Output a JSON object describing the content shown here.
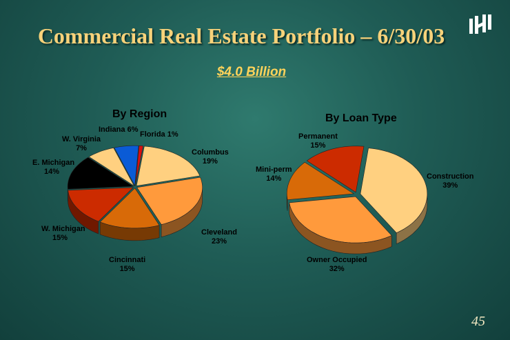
{
  "title": "Commercial Real Estate Portfolio – 6/30/03",
  "subtitle": "$4.0 Billion",
  "page_number": "45",
  "logo": "huntington-logo",
  "colors": {
    "background": "#1f5c55",
    "title": "#f7d27a",
    "subtitle": "#ffd35a"
  },
  "chart_data": [
    {
      "type": "pie",
      "title": "By Region",
      "slices": [
        {
          "name": "Columbus",
          "label": "Columbus",
          "pct_label": "19%",
          "value": 19,
          "color": "#ffd080"
        },
        {
          "name": "Cleveland",
          "label": "Cleveland",
          "pct_label": "23%",
          "value": 23,
          "color": "#ff9a3c"
        },
        {
          "name": "Cincinnati",
          "label": "Cincinnati",
          "pct_label": "15%",
          "value": 15,
          "color": "#d86a08"
        },
        {
          "name": "W. Michigan",
          "label": "W. Michigan",
          "pct_label": "15%",
          "value": 15,
          "color": "#cc2b00"
        },
        {
          "name": "E. Michigan",
          "label": "E. Michigan",
          "pct_label": "14%",
          "value": 14,
          "color": "#000000"
        },
        {
          "name": "W. Virginia",
          "label": "W. Virginia",
          "pct_label": "7%",
          "value": 7,
          "color": "#ffd080"
        },
        {
          "name": "Indiana",
          "label": "Indiana",
          "pct_label": "6%",
          "value": 6,
          "color": "#0a5bd6"
        },
        {
          "name": "Florida",
          "label": "Florida",
          "pct_label": "1%",
          "value": 1,
          "color": "#d81010"
        }
      ]
    },
    {
      "type": "pie",
      "title": "By Loan Type",
      "slices": [
        {
          "name": "Construction",
          "label": "Construction",
          "pct_label": "39%",
          "value": 39,
          "color": "#ffd080"
        },
        {
          "name": "Owner Occupied",
          "label": "Owner Occupied",
          "pct_label": "32%",
          "value": 32,
          "color": "#ff9a3c"
        },
        {
          "name": "Mini-perm",
          "label": "Mini-perm",
          "pct_label": "14%",
          "value": 14,
          "color": "#d86a08"
        },
        {
          "name": "Permanent",
          "label": "Permanent",
          "pct_label": "15%",
          "value": 15,
          "color": "#cc2b00"
        }
      ]
    }
  ]
}
